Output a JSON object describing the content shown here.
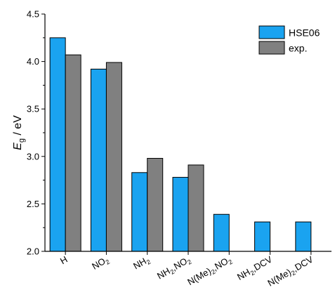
{
  "chart_data": {
    "type": "bar",
    "categories": [
      {
        "id": "H",
        "parts": [
          {
            "t": "H",
            "sub": false
          }
        ]
      },
      {
        "id": "NO2",
        "parts": [
          {
            "t": "NO",
            "sub": false
          },
          {
            "t": "2",
            "sub": true
          }
        ]
      },
      {
        "id": "NH2",
        "parts": [
          {
            "t": "NH",
            "sub": false
          },
          {
            "t": "2",
            "sub": true
          }
        ]
      },
      {
        "id": "NH2,NO2",
        "parts": [
          {
            "t": "NH",
            "sub": false
          },
          {
            "t": "2",
            "sub": true
          },
          {
            "t": ",NO",
            "sub": false
          },
          {
            "t": "2",
            "sub": true
          }
        ]
      },
      {
        "id": "N(Me)2,NO2",
        "parts": [
          {
            "t": "N(Me)",
            "sub": false
          },
          {
            "t": "2",
            "sub": true
          },
          {
            "t": ",NO",
            "sub": false
          },
          {
            "t": "2",
            "sub": true
          }
        ]
      },
      {
        "id": "NH2,DCV",
        "parts": [
          {
            "t": "NH",
            "sub": false
          },
          {
            "t": "2",
            "sub": true
          },
          {
            "t": ",DCV",
            "sub": false
          }
        ]
      },
      {
        "id": "N(Me)2,DCV",
        "parts": [
          {
            "t": "N(Me)",
            "sub": false
          },
          {
            "t": "2",
            "sub": true
          },
          {
            "t": ",DCV",
            "sub": false
          }
        ]
      }
    ],
    "series": [
      {
        "name": "HSE06",
        "color": "#1aa3f0",
        "values": [
          4.25,
          3.92,
          2.83,
          2.78,
          2.39,
          2.31,
          2.31
        ]
      },
      {
        "name": "exp.",
        "color": "#808080",
        "values": [
          4.07,
          3.99,
          2.98,
          2.91,
          null,
          null,
          null
        ]
      }
    ],
    "ylabel": {
      "main": "E",
      "sub": "g",
      "rest": " / eV"
    },
    "ylim": [
      2.0,
      4.5
    ],
    "yticks": [
      2.0,
      2.5,
      3.0,
      3.5,
      4.0,
      4.5
    ],
    "ytick_labels": [
      "2.0",
      "2.5",
      "3.0",
      "3.5",
      "4.0",
      "4.5"
    ],
    "grid": false,
    "legend_position": "top-right"
  }
}
